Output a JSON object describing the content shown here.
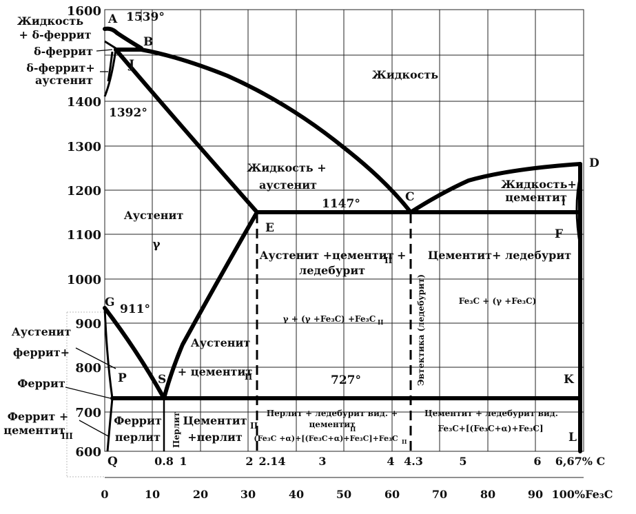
{
  "y_ticks": [
    "1600",
    "1400",
    "1300",
    "1200",
    "1100",
    "1000",
    "900",
    "800",
    "700",
    "600"
  ],
  "c_ticks": [
    "0.8",
    "1",
    "2",
    "2.14",
    "3",
    "4",
    "4.3",
    "5",
    "6",
    "6,67% C"
  ],
  "fe3c_ticks": [
    "0",
    "10",
    "20",
    "30",
    "40",
    "50",
    "60",
    "70",
    "80",
    "90",
    "100%Fe₃C"
  ],
  "points": {
    "A": "A",
    "B": "B",
    "J": "J",
    "C": "C",
    "D": "D",
    "E": "E",
    "F": "F",
    "G": "G",
    "P": "P",
    "S": "S",
    "K": "K",
    "Q": "Q",
    "L": "L"
  },
  "temps": {
    "t1539": "1539°",
    "t1392": "1392°",
    "t1147": "1147°",
    "t911": "911°",
    "t727": "727°"
  },
  "phases": {
    "liquid": "Жидкость",
    "liquid_austenite_1": "Жидкость +",
    "liquid_austenite_2": "аустенит",
    "liquid_cementite_1": "Жидкость+",
    "liquid_cementite_2": "цементит",
    "liquid_cementite_sub": "I",
    "liquid_delta_1": "Жидкость",
    "liquid_delta_2": "+ δ-феррит",
    "delta_ferrite": "δ-феррит",
    "delta_austenite_1": "δ-феррит+",
    "delta_austenite_2": "аустенит",
    "austenite": "Аустенит",
    "gamma": "γ",
    "aus_cem_led_1": "Аустенит +цементит",
    "aus_cem_led_sub": "II",
    "aus_cem_led_plus": "+",
    "aus_cem_led_2": "ледебурит",
    "gamma_formula": "γ + (γ +Fe₃C) +Fe₃C",
    "gamma_formula_sub": "II",
    "cem_led": "Цементит+ ледебурит",
    "fe3c_formula": "Fe₃C  +  (γ +Fe₃C)",
    "eutectic_vertical": "Эвтектика (ледебурит)",
    "aus_cem_1": "Аустенит",
    "aus_cem_2": "+ цементит",
    "aus_cem_sub": "II",
    "aus_ferrite_1": "Аустенит",
    "aus_ferrite_2": "феррит+",
    "ferrite": "Феррит",
    "ferrite_cem_1": "Феррит +",
    "ferrite_cem_2": "цементит",
    "ferrite_cem_sub": "III",
    "ferrite_pearlite_1": "Феррит",
    "ferrite_pearlite_2": "перлит",
    "pearlite_vertical": "Перлит",
    "cem_pearlite_1": "Цементит",
    "cem_pearlite_sub": "II",
    "cem_pearlite_2": "+перлит",
    "pearlite_led_1": "Перлит + ледебурит вид. +",
    "pearlite_led_2": "цементит",
    "pearlite_led_2_sub": "II",
    "pearlite_led_3": "(Fe₃C +α)+[(Fe₃C+α)+Fe₃C]+Fe₃C",
    "pearlite_led_3_sub": "II",
    "cem_led_vid_1": "Цементит + ледебурит вид.",
    "cem_led_vid_2": "Fe₃C+[(Fe₃C+α)+Fe₃C]"
  }
}
